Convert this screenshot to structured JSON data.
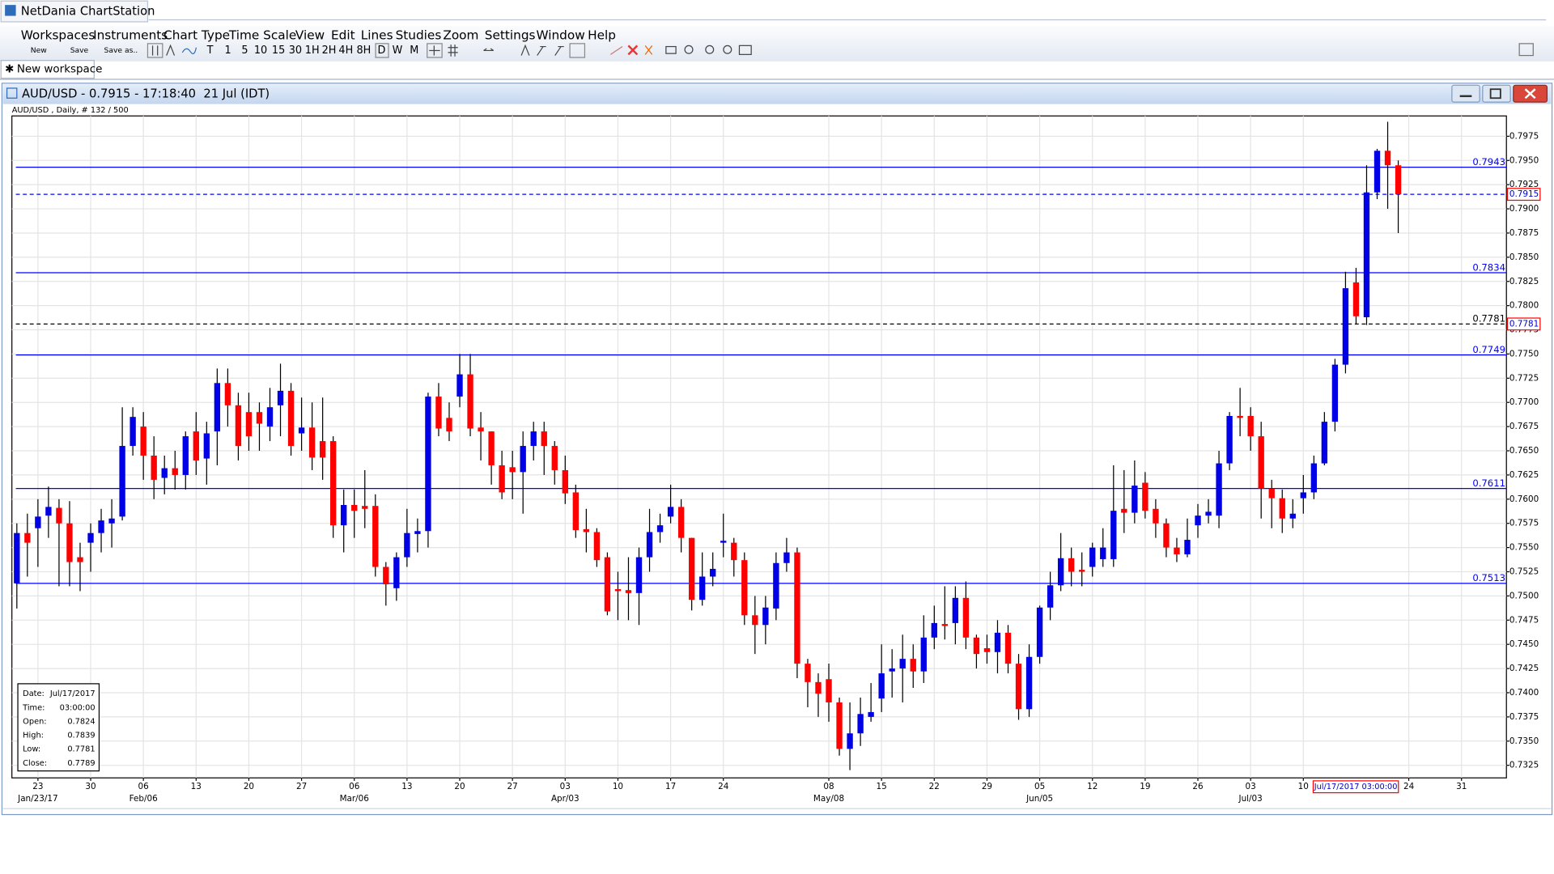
{
  "app": {
    "title": "NetDania ChartStation",
    "menu": [
      "Workspaces",
      "Instruments",
      "Chart Type",
      "Time Scale",
      "View",
      "Edit",
      "Lines",
      "Studies",
      "Zoom",
      "Settings",
      "Window",
      "Help"
    ],
    "toolbar": [
      "New",
      "Save",
      "Save as.."
    ],
    "timeframes": [
      "T",
      "1",
      "5",
      "10",
      "15",
      "30",
      "1H",
      "2H",
      "4H",
      "8H",
      "D",
      "W",
      "M"
    ],
    "tab": "New workspace",
    "window_title": "AUD/USD - 0.7915 - 17:18:40  21 Jul (IDT)"
  },
  "info_box": [
    {
      "label": "Date:",
      "value": "Jul/17/2017"
    },
    {
      "label": "Time:",
      "value": "03:00:00"
    },
    {
      "label": "Open:",
      "value": 0.7824
    },
    {
      "label": "High:",
      "value": 0.7839
    },
    {
      "label": "Low:",
      "value": 0.7781
    },
    {
      "label": "Close:",
      "value": 0.7789
    }
  ],
  "cursor_label": "Jul/17/2017 03:00:00",
  "chart_data": {
    "type": "candlestick",
    "subtitle": "AUD/USD , Daily, # 132 / 500",
    "up_color": "#0000e6",
    "down_color": "#ff0000",
    "grid": true,
    "ylim": [
      0.7312,
      0.7996
    ],
    "yticks": [
      0.7325,
      {
        "value": 0.735,
        "label": "0.7350"
      },
      0.7375,
      {
        "value": 0.74,
        "label": "0.7400"
      },
      0.7425,
      {
        "value": 0.745,
        "label": "0.7450"
      },
      0.7475,
      {
        "value": 0.75,
        "label": "0.7500"
      },
      0.7525,
      {
        "value": 0.755,
        "label": "0.7550"
      },
      0.7575,
      {
        "value": 0.76,
        "label": "0.7600"
      },
      0.7625,
      {
        "value": 0.765,
        "label": "0.7650"
      },
      0.7675,
      {
        "value": 0.77,
        "label": "0.7700"
      },
      0.7725,
      {
        "value": 0.775,
        "label": "0.7750"
      },
      0.7775,
      {
        "value": 0.78,
        "label": "0.7800"
      },
      0.7825,
      {
        "value": 0.785,
        "label": "0.7850"
      },
      0.7875,
      {
        "value": 0.79,
        "label": "0.7900"
      },
      0.7925,
      {
        "value": 0.795,
        "label": "0.7950"
      },
      0.7975
    ],
    "hlines": [
      {
        "value": 0.7943,
        "color": "#0000ff",
        "dashed": false,
        "line_label": true,
        "axis_box": false
      },
      {
        "value": 0.7915,
        "color": "#0000ff",
        "dashed": true,
        "line_label": false,
        "axis_box": true
      },
      {
        "value": 0.7834,
        "color": "#0000ff",
        "dashed": false,
        "line_label": true,
        "axis_box": false
      },
      {
        "value": 0.7781,
        "color": "#000000",
        "dashed": true,
        "line_label": true,
        "axis_box": true
      },
      {
        "value": 0.7749,
        "color": "#0000ff",
        "dashed": false,
        "line_label": true,
        "axis_box": false
      },
      {
        "value": 0.7611,
        "color": "#0000ff",
        "dashed": false,
        "line_label": true,
        "axis_box": false
      },
      {
        "value": 0.7513,
        "color": "#0000ff",
        "dashed": false,
        "line_label": true,
        "axis_box": false
      }
    ],
    "categories": [
      null,
      null,
      "23",
      null,
      null,
      null,
      null,
      "30",
      null,
      null,
      null,
      null,
      "06",
      null,
      null,
      null,
      null,
      "13",
      null,
      null,
      null,
      null,
      "20",
      null,
      null,
      null,
      null,
      "27",
      null,
      null,
      null,
      null,
      "06",
      null,
      null,
      null,
      null,
      "13",
      null,
      null,
      null,
      null,
      "20",
      null,
      null,
      null,
      null,
      "27",
      null,
      null,
      null,
      null,
      "03",
      null,
      null,
      null,
      null,
      "10",
      null,
      null,
      null,
      null,
      "17",
      null,
      null,
      null,
      null,
      "24",
      null,
      null,
      null,
      null,
      null,
      null,
      null,
      null,
      null,
      "08",
      null,
      null,
      null,
      null,
      "15",
      null,
      null,
      null,
      null,
      "22",
      null,
      null,
      null,
      null,
      "29",
      null,
      null,
      null,
      null,
      "05",
      null,
      null,
      null,
      null,
      "12",
      null,
      null,
      null,
      null,
      "19",
      null,
      null,
      null,
      null,
      "26",
      null,
      null,
      null,
      null,
      "03",
      null,
      null,
      null,
      null,
      "10",
      null,
      null,
      null,
      null,
      null,
      null,
      null,
      null,
      null,
      "24",
      null,
      null,
      null,
      null,
      "31"
    ],
    "sublabels": [
      null,
      null,
      "Jan/23/17",
      null,
      null,
      null,
      null,
      null,
      null,
      null,
      null,
      null,
      "Feb/06",
      null,
      null,
      null,
      null,
      null,
      null,
      null,
      null,
      null,
      null,
      null,
      null,
      null,
      null,
      null,
      null,
      null,
      null,
      null,
      "Mar/06",
      null,
      null,
      null,
      null,
      null,
      null,
      null,
      null,
      null,
      null,
      null,
      null,
      null,
      null,
      null,
      null,
      null,
      null,
      null,
      "Apr/03",
      null,
      null,
      null,
      null,
      null,
      null,
      null,
      null,
      null,
      null,
      null,
      null,
      null,
      null,
      null,
      null,
      null,
      null,
      null,
      null,
      null,
      null,
      null,
      null,
      "May/08",
      null,
      null,
      null,
      null,
      null,
      null,
      null,
      null,
      null,
      null,
      null,
      null,
      null,
      null,
      null,
      null,
      null,
      null,
      null,
      "Jun/05",
      null,
      null,
      null,
      null,
      null,
      null,
      null,
      null,
      null,
      null,
      null,
      null,
      null,
      null,
      null,
      null,
      null,
      null,
      null,
      "Jul/03",
      null,
      null,
      null,
      null,
      null,
      null,
      null,
      null,
      null,
      null,
      null,
      null,
      null,
      null,
      null,
      null,
      null,
      null,
      null,
      null
    ],
    "ohlc": [
      [
        0.7513,
        0.7575,
        0.7487,
        0.7565
      ],
      [
        0.7565,
        0.7585,
        0.752,
        0.7555
      ],
      [
        0.757,
        0.76,
        0.753,
        0.7582
      ],
      [
        0.7583,
        0.7613,
        0.756,
        0.7592
      ],
      [
        0.7591,
        0.76,
        0.751,
        0.7575
      ],
      [
        0.7575,
        0.7598,
        0.751,
        0.7535
      ],
      [
        0.754,
        0.7555,
        0.7505,
        0.7535
      ],
      [
        0.7555,
        0.7575,
        0.7525,
        0.7565
      ],
      [
        0.7565,
        0.759,
        0.7545,
        0.7578
      ],
      [
        0.7575,
        0.76,
        0.755,
        0.758
      ],
      [
        0.7582,
        0.7695,
        0.7578,
        0.7655
      ],
      [
        0.7655,
        0.7695,
        0.7645,
        0.7685
      ],
      [
        0.7675,
        0.769,
        0.762,
        0.7645
      ],
      [
        0.7645,
        0.7665,
        0.76,
        0.762
      ],
      [
        0.7622,
        0.7645,
        0.7605,
        0.7632
      ],
      [
        0.7632,
        0.765,
        0.761,
        0.7625
      ],
      [
        0.7625,
        0.767,
        0.761,
        0.7665
      ],
      [
        0.767,
        0.769,
        0.7625,
        0.764
      ],
      [
        0.7642,
        0.768,
        0.7615,
        0.7668
      ],
      [
        0.767,
        0.7735,
        0.7635,
        0.772
      ],
      [
        0.772,
        0.7735,
        0.7675,
        0.7697
      ],
      [
        0.7697,
        0.771,
        0.764,
        0.7655
      ],
      [
        0.769,
        0.771,
        0.765,
        0.7665
      ],
      [
        0.769,
        0.77,
        0.765,
        0.7678
      ],
      [
        0.7675,
        0.7715,
        0.766,
        0.7695
      ],
      [
        0.7697,
        0.774,
        0.7665,
        0.7712
      ],
      [
        0.7712,
        0.772,
        0.7645,
        0.7655
      ],
      [
        0.7668,
        0.7705,
        0.765,
        0.7674
      ],
      [
        0.7674,
        0.77,
        0.763,
        0.7643
      ],
      [
        0.766,
        0.7705,
        0.762,
        0.7643
      ],
      [
        0.766,
        0.7665,
        0.756,
        0.7573
      ],
      [
        0.7573,
        0.761,
        0.7545,
        0.7594
      ],
      [
        0.7594,
        0.761,
        0.756,
        0.7588
      ],
      [
        0.7593,
        0.763,
        0.757,
        0.759
      ],
      [
        0.7593,
        0.7605,
        0.752,
        0.753
      ],
      [
        0.753,
        0.7535,
        0.749,
        0.7512
      ],
      [
        0.7508,
        0.7545,
        0.7495,
        0.754
      ],
      [
        0.754,
        0.759,
        0.753,
        0.7565
      ],
      [
        0.7564,
        0.758,
        0.7545,
        0.7567
      ],
      [
        0.7567,
        0.771,
        0.755,
        0.7706
      ],
      [
        0.7706,
        0.772,
        0.7665,
        0.7673
      ],
      [
        0.7684,
        0.77,
        0.766,
        0.767
      ],
      [
        0.7706,
        0.775,
        0.7695,
        0.7729
      ],
      [
        0.7729,
        0.775,
        0.7665,
        0.7673
      ],
      [
        0.7674,
        0.769,
        0.764,
        0.767
      ],
      [
        0.767,
        0.767,
        0.7615,
        0.7635
      ],
      [
        0.7635,
        0.765,
        0.76,
        0.7607
      ],
      [
        0.7633,
        0.765,
        0.76,
        0.7628
      ],
      [
        0.7628,
        0.767,
        0.7585,
        0.7655
      ],
      [
        0.7655,
        0.768,
        0.764,
        0.767
      ],
      [
        0.767,
        0.768,
        0.7625,
        0.7655
      ],
      [
        0.7655,
        0.766,
        0.7615,
        0.763
      ],
      [
        0.763,
        0.7645,
        0.7595,
        0.7606
      ],
      [
        0.7607,
        0.7615,
        0.756,
        0.7568
      ],
      [
        0.7569,
        0.759,
        0.7545,
        0.7566
      ],
      [
        0.7566,
        0.757,
        0.753,
        0.7537
      ],
      [
        0.754,
        0.7545,
        0.748,
        0.7484
      ],
      [
        0.7507,
        0.7525,
        0.7475,
        0.7505
      ],
      [
        0.7506,
        0.754,
        0.7475,
        0.7503
      ],
      [
        0.7503,
        0.755,
        0.747,
        0.754
      ],
      [
        0.754,
        0.759,
        0.7525,
        0.7566
      ],
      [
        0.7566,
        0.7585,
        0.7555,
        0.7573
      ],
      [
        0.7582,
        0.7615,
        0.7575,
        0.7592
      ],
      [
        0.7592,
        0.76,
        0.7545,
        0.756
      ],
      [
        0.756,
        0.756,
        0.7485,
        0.7496
      ],
      [
        0.7496,
        0.7545,
        0.749,
        0.752
      ],
      [
        0.752,
        0.7545,
        0.751,
        0.7528
      ],
      [
        0.7555,
        0.7585,
        0.754,
        0.7557
      ],
      [
        0.7555,
        0.756,
        0.752,
        0.7537
      ],
      [
        0.7537,
        0.7545,
        0.747,
        0.748
      ],
      [
        0.748,
        0.75,
        0.744,
        0.747
      ],
      [
        0.747,
        0.75,
        0.745,
        0.7488
      ],
      [
        0.7487,
        0.7545,
        0.7475,
        0.7534
      ],
      [
        0.7534,
        0.756,
        0.7525,
        0.7545
      ],
      [
        0.7545,
        0.755,
        0.7415,
        0.743
      ],
      [
        0.743,
        0.7435,
        0.7385,
        0.7411
      ],
      [
        0.7411,
        0.742,
        0.7375,
        0.7399
      ],
      [
        0.7414,
        0.743,
        0.737,
        0.739
      ],
      [
        0.739,
        0.7395,
        0.7335,
        0.7342
      ],
      [
        0.7342,
        0.739,
        0.732,
        0.7358
      ],
      [
        0.7358,
        0.7395,
        0.7345,
        0.7378
      ],
      [
        0.7375,
        0.741,
        0.737,
        0.738
      ],
      [
        0.7394,
        0.745,
        0.738,
        0.742
      ],
      [
        0.7422,
        0.7445,
        0.7395,
        0.7425
      ],
      [
        0.7425,
        0.746,
        0.739,
        0.7435
      ],
      [
        0.7435,
        0.745,
        0.7405,
        0.7422
      ],
      [
        0.7422,
        0.748,
        0.741,
        0.7457
      ],
      [
        0.7457,
        0.749,
        0.7445,
        0.7472
      ],
      [
        0.7471,
        0.751,
        0.7455,
        0.7469
      ],
      [
        0.7472,
        0.751,
        0.745,
        0.7498
      ],
      [
        0.7498,
        0.7515,
        0.7445,
        0.7457
      ],
      [
        0.7457,
        0.746,
        0.7425,
        0.744
      ],
      [
        0.7446,
        0.746,
        0.743,
        0.7442
      ],
      [
        0.7442,
        0.7475,
        0.742,
        0.7462
      ],
      [
        0.7462,
        0.747,
        0.742,
        0.743
      ],
      [
        0.743,
        0.744,
        0.7372,
        0.7383
      ],
      [
        0.7383,
        0.745,
        0.7375,
        0.7437
      ],
      [
        0.7437,
        0.749,
        0.743,
        0.7488
      ],
      [
        0.7488,
        0.7525,
        0.7475,
        0.7511
      ],
      [
        0.7511,
        0.7565,
        0.7505,
        0.7539
      ],
      [
        0.7539,
        0.755,
        0.751,
        0.7525
      ],
      [
        0.7527,
        0.7545,
        0.751,
        0.7525
      ],
      [
        0.753,
        0.7555,
        0.752,
        0.755
      ],
      [
        0.7538,
        0.757,
        0.753,
        0.755
      ],
      [
        0.7538,
        0.7635,
        0.753,
        0.7588
      ],
      [
        0.759,
        0.763,
        0.7565,
        0.7586
      ],
      [
        0.7586,
        0.764,
        0.7575,
        0.7614
      ],
      [
        0.7617,
        0.7628,
        0.758,
        0.7588
      ],
      [
        0.759,
        0.76,
        0.756,
        0.7575
      ],
      [
        0.7575,
        0.758,
        0.754,
        0.755
      ],
      [
        0.755,
        0.756,
        0.7535,
        0.7543
      ],
      [
        0.7543,
        0.758,
        0.754,
        0.7558
      ],
      [
        0.7573,
        0.7595,
        0.756,
        0.7583
      ],
      [
        0.7583,
        0.76,
        0.7575,
        0.7587
      ],
      [
        0.7583,
        0.765,
        0.757,
        0.7637
      ],
      [
        0.7637,
        0.769,
        0.763,
        0.7686
      ],
      [
        0.7686,
        0.7715,
        0.7665,
        0.7684
      ],
      [
        0.7686,
        0.7695,
        0.765,
        0.7665
      ],
      [
        0.7665,
        0.768,
        0.758,
        0.7611
      ],
      [
        0.7611,
        0.762,
        0.757,
        0.7601
      ],
      [
        0.7601,
        0.761,
        0.7565,
        0.758
      ],
      [
        0.758,
        0.76,
        0.757,
        0.7585
      ],
      [
        0.7601,
        0.7625,
        0.7585,
        0.7607
      ],
      [
        0.7607,
        0.7645,
        0.76,
        0.7637
      ],
      [
        0.7637,
        0.769,
        0.7635,
        0.768
      ],
      [
        0.768,
        0.7745,
        0.767,
        0.7739
      ],
      [
        0.7739,
        0.7835,
        0.773,
        0.7818
      ],
      [
        0.7824,
        0.7839,
        0.7781,
        0.7789
      ],
      [
        0.7788,
        0.7945,
        0.778,
        0.7917
      ],
      [
        0.7917,
        0.7962,
        0.791,
        0.796
      ],
      [
        0.796,
        0.799,
        0.79,
        0.7945
      ],
      [
        0.7945,
        0.795,
        0.7875,
        0.7915
      ],
      null,
      null,
      null,
      null,
      null,
      null
    ]
  }
}
